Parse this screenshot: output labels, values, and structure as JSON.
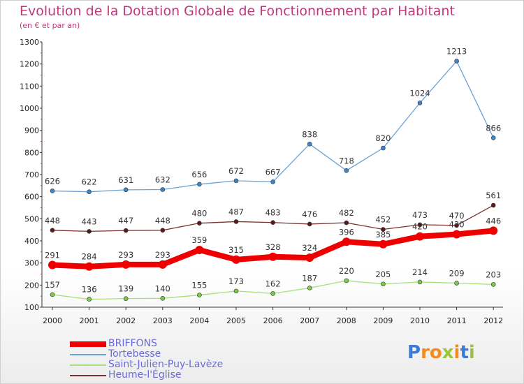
{
  "title": "Evolution de la Dotation Globale de Fonctionnement par Habitant",
  "subtitle": "(en € et par an)",
  "logo": {
    "letters": [
      "P",
      "r",
      "o",
      "x",
      "i",
      "t",
      "i"
    ],
    "colors": [
      "#3a7bd5",
      "#f28c1e",
      "#f28c1e",
      "#9bc53d",
      "#f28c1e",
      "#3a7bd5",
      "#9bc53d"
    ]
  },
  "chart_data": {
    "type": "line",
    "title": "Evolution de la Dotation Globale de Fonctionnement par Habitant",
    "subtitle": "(en € et par an)",
    "x": [
      "2000",
      "2001",
      "2002",
      "2003",
      "2004",
      "2005",
      "2006",
      "2007",
      "2008",
      "2009",
      "2010",
      "2011",
      "2012"
    ],
    "yticks": [
      100,
      200,
      300,
      400,
      500,
      600,
      700,
      800,
      900,
      1000,
      1100,
      1200,
      1300
    ],
    "ylim": [
      100,
      1300
    ],
    "grid": false,
    "legend": "bottom-left",
    "series": [
      {
        "name": "Tortebesse",
        "color": "#6ba3d6",
        "marker": "#3d85c6",
        "width": 1.3,
        "labels": true,
        "values": [
          626,
          622,
          631,
          632,
          656,
          672,
          667,
          838,
          718,
          820,
          1024,
          1213,
          866
        ]
      },
      {
        "name": "Saint-Julien-Puy-Lavèze",
        "color": "#a6e07a",
        "marker": "#7dc94b",
        "width": 1.3,
        "labels": true,
        "values": [
          157,
          136,
          139,
          140,
          155,
          173,
          162,
          187,
          220,
          205,
          214,
          209,
          203
        ]
      },
      {
        "name": "Heume-l'Église",
        "color": "#7a3232",
        "marker": "#5a1a1a",
        "width": 1.3,
        "labels": true,
        "values": [
          448,
          443,
          447,
          448,
          480,
          487,
          483,
          476,
          482,
          452,
          473,
          470,
          561
        ]
      },
      {
        "name": "BRIFFONS",
        "color": "#ee0000",
        "marker": "#ee0000",
        "width": 8,
        "labels": true,
        "values": [
          291,
          284,
          293,
          293,
          359,
          315,
          328,
          324,
          396,
          385,
          420,
          430,
          446
        ]
      }
    ],
    "legend_order": [
      "BRIFFONS",
      "Tortebesse",
      "Saint-Julien-Puy-Lavèze",
      "Heume-l'Église"
    ]
  }
}
